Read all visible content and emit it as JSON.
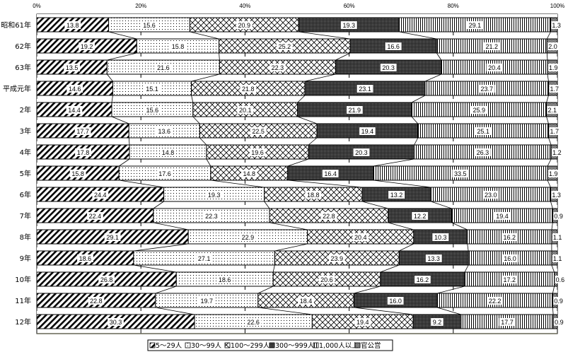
{
  "chart_data": {
    "type": "bar",
    "orientation": "horizontal",
    "stacked": "percent",
    "categories": [
      "昭和61年",
      "62年",
      "63年",
      "平成元年",
      "2年",
      "3年",
      "4年",
      "5年",
      "6年",
      "7年",
      "8年",
      "9年",
      "10年",
      "11年",
      "12年"
    ],
    "series": [
      {
        "name": "5～29人",
        "pattern": "diagonal-hatch",
        "values": [
          13.8,
          19.2,
          13.5,
          14.6,
          14.4,
          17.7,
          17.8,
          15.8,
          24.4,
          22.4,
          29.1,
          18.6,
          26.8,
          22.8,
          30.3
        ]
      },
      {
        "name": "30～99人",
        "pattern": "dots",
        "values": [
          15.6,
          15.8,
          21.6,
          15.1,
          15.6,
          13.6,
          14.8,
          17.6,
          19.3,
          22.3,
          22.9,
          27.1,
          18.6,
          19.7,
          22.6
        ]
      },
      {
        "name": "100～299人",
        "pattern": "crosshatch",
        "values": [
          20.9,
          25.2,
          22.3,
          21.8,
          20.1,
          22.5,
          19.6,
          14.8,
          18.8,
          22.8,
          20.4,
          23.9,
          20.6,
          18.4,
          19.4
        ]
      },
      {
        "name": "300～999人",
        "pattern": "dense-dots",
        "values": [
          19.3,
          16.6,
          20.3,
          23.1,
          21.9,
          19.4,
          20.3,
          16.4,
          13.2,
          12.2,
          10.3,
          13.3,
          16.2,
          16.0,
          9.2
        ]
      },
      {
        "name": "1,000人以上",
        "pattern": "vertical-lines",
        "values": [
          29.1,
          21.2,
          20.4,
          23.7,
          25.9,
          25.1,
          26.3,
          33.5,
          23.0,
          19.4,
          16.2,
          16.0,
          17.2,
          22.2,
          17.7
        ]
      },
      {
        "name": "官公営",
        "pattern": "checker",
        "values": [
          1.3,
          2.0,
          1.9,
          1.7,
          2.1,
          1.7,
          1.2,
          1.9,
          1.3,
          0.9,
          1.1,
          1.1,
          0.6,
          0.9,
          0.9
        ]
      }
    ],
    "x_ticks": [
      "0%",
      "20%",
      "40%",
      "60%",
      "80%",
      "100%"
    ],
    "xlim": [
      0,
      100
    ],
    "grid": true,
    "legend_position": "bottom-center",
    "title": "",
    "xlabel": "",
    "ylabel": ""
  }
}
